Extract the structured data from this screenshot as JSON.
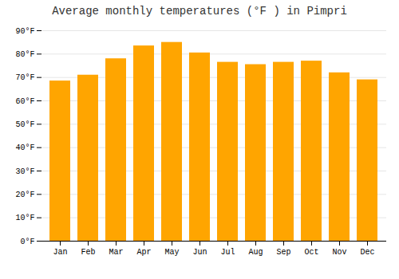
{
  "chart_data": {
    "type": "bar",
    "title": "Average monthly temperatures (°F ) in Pimpri",
    "categories": [
      "Jan",
      "Feb",
      "Mar",
      "Apr",
      "May",
      "Jun",
      "Jul",
      "Aug",
      "Sep",
      "Oct",
      "Nov",
      "Dec"
    ],
    "values": [
      68.5,
      71.0,
      78.0,
      83.5,
      85.0,
      80.5,
      76.5,
      75.5,
      76.5,
      77.0,
      72.0,
      69.0
    ],
    "color": "#FFA500",
    "ylim": [
      0,
      90
    ],
    "yticks": [
      {
        "value": 0,
        "label": "0°F"
      },
      {
        "value": 10,
        "label": "10°F"
      },
      {
        "value": 20,
        "label": "20°F"
      },
      {
        "value": 30,
        "label": "30°F"
      },
      {
        "value": 40,
        "label": "40°F"
      },
      {
        "value": 50,
        "label": "50°F"
      },
      {
        "value": 60,
        "label": "60°F"
      },
      {
        "value": 70,
        "label": "70°F"
      },
      {
        "value": 80,
        "label": "80°F"
      },
      {
        "value": 90,
        "label": "90°F"
      }
    ],
    "grid": true
  }
}
